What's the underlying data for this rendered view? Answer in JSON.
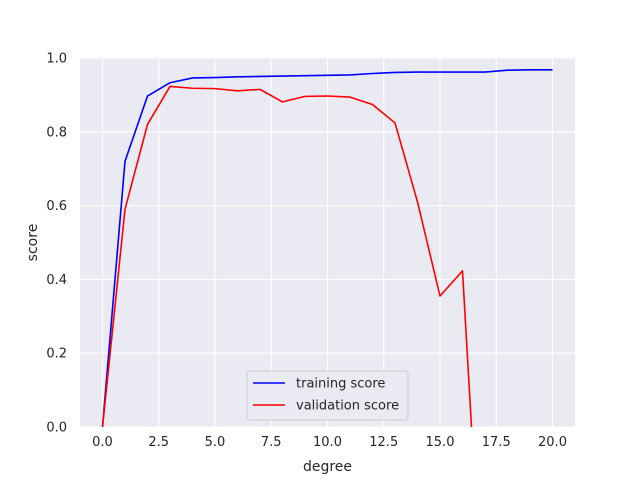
{
  "chart_data": {
    "type": "line",
    "xlabel": "degree",
    "ylabel": "score",
    "xlim": [
      -1.0,
      21.0
    ],
    "ylim": [
      0.0,
      1.0
    ],
    "x_ticks": [
      "0.0",
      "2.5",
      "5.0",
      "7.5",
      "10.0",
      "12.5",
      "15.0",
      "17.5",
      "20.0"
    ],
    "y_ticks": [
      "0.0",
      "0.2",
      "0.4",
      "0.6",
      "0.8",
      "1.0"
    ],
    "grid": true,
    "legend_position": "lower center",
    "series": [
      {
        "name": "training score",
        "color": "#0000ff",
        "x": [
          0,
          1,
          2,
          3,
          4,
          5,
          6,
          7,
          8,
          9,
          10,
          11,
          12,
          13,
          14,
          15,
          16,
          17,
          18,
          19,
          20
        ],
        "y": [
          0.0,
          0.72,
          0.897,
          0.933,
          0.946,
          0.947,
          0.949,
          0.95,
          0.951,
          0.952,
          0.953,
          0.954,
          0.958,
          0.961,
          0.962,
          0.962,
          0.962,
          0.962,
          0.967,
          0.968,
          0.968
        ]
      },
      {
        "name": "validation score",
        "color": "#ff0000",
        "x": [
          0,
          1,
          2,
          3,
          4,
          5,
          6,
          7,
          8,
          9,
          10,
          11,
          12,
          13,
          14,
          15,
          16,
          16.4
        ],
        "y": [
          0.0,
          0.59,
          0.82,
          0.923,
          0.918,
          0.917,
          0.911,
          0.915,
          0.881,
          0.896,
          0.897,
          0.894,
          0.874,
          0.824,
          0.61,
          0.355,
          0.423,
          0.0
        ]
      }
    ]
  }
}
